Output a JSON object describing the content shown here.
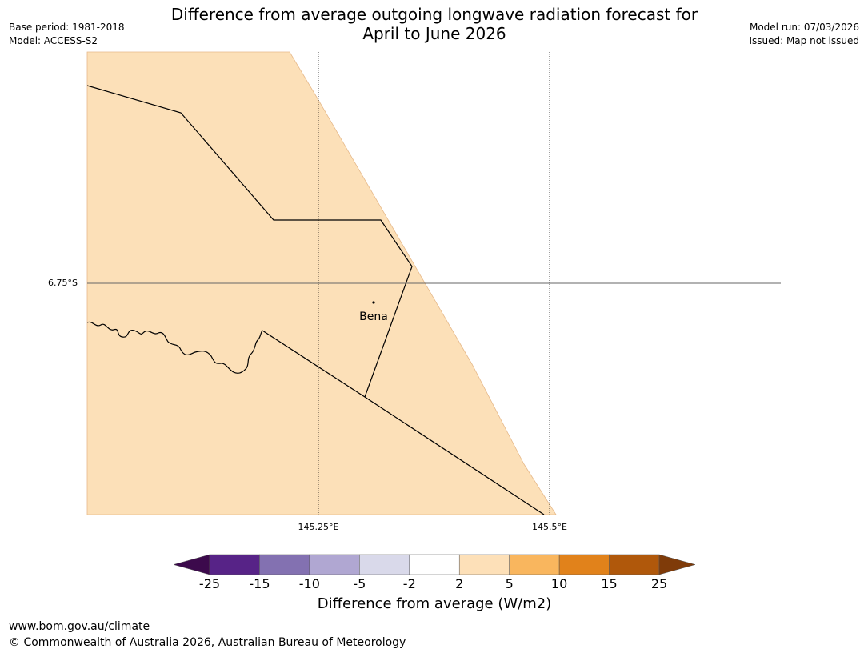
{
  "title_line1": "Difference from average outgoing longwave radiation forecast for",
  "title_line2": "April to June 2026",
  "meta_left": {
    "base_period": "Base period: 1981-2018",
    "model": "Model: ACCESS-S2"
  },
  "meta_right": {
    "model_run": "Model run: 07/03/2026",
    "issued": "Issued: Map not issued"
  },
  "map": {
    "lat_labels": [
      "6.75°S"
    ],
    "lon_labels": [
      "145.25°E",
      "145.5°E"
    ],
    "place": "Bena",
    "fill_color": "#fce0b8",
    "fill_category": "2 to 5"
  },
  "colorbar": {
    "title": "Difference from average (W/m2)",
    "ticks": [
      "-25",
      "-15",
      "-10",
      "-5",
      "-2",
      "2",
      "5",
      "10",
      "15",
      "25"
    ],
    "colors": [
      "#3c0a4c",
      "#572387",
      "#8371b1",
      "#b0a7d2",
      "#d9d9ea",
      "#ffffff",
      "#fde0b8",
      "#f9b65e",
      "#e1821b",
      "#b0580b",
      "#7f3b09"
    ]
  },
  "footer": {
    "url": "www.bom.gov.au/climate",
    "copyright": "© Commonwealth of Australia 2026, Australian Bureau of Meteorology"
  }
}
